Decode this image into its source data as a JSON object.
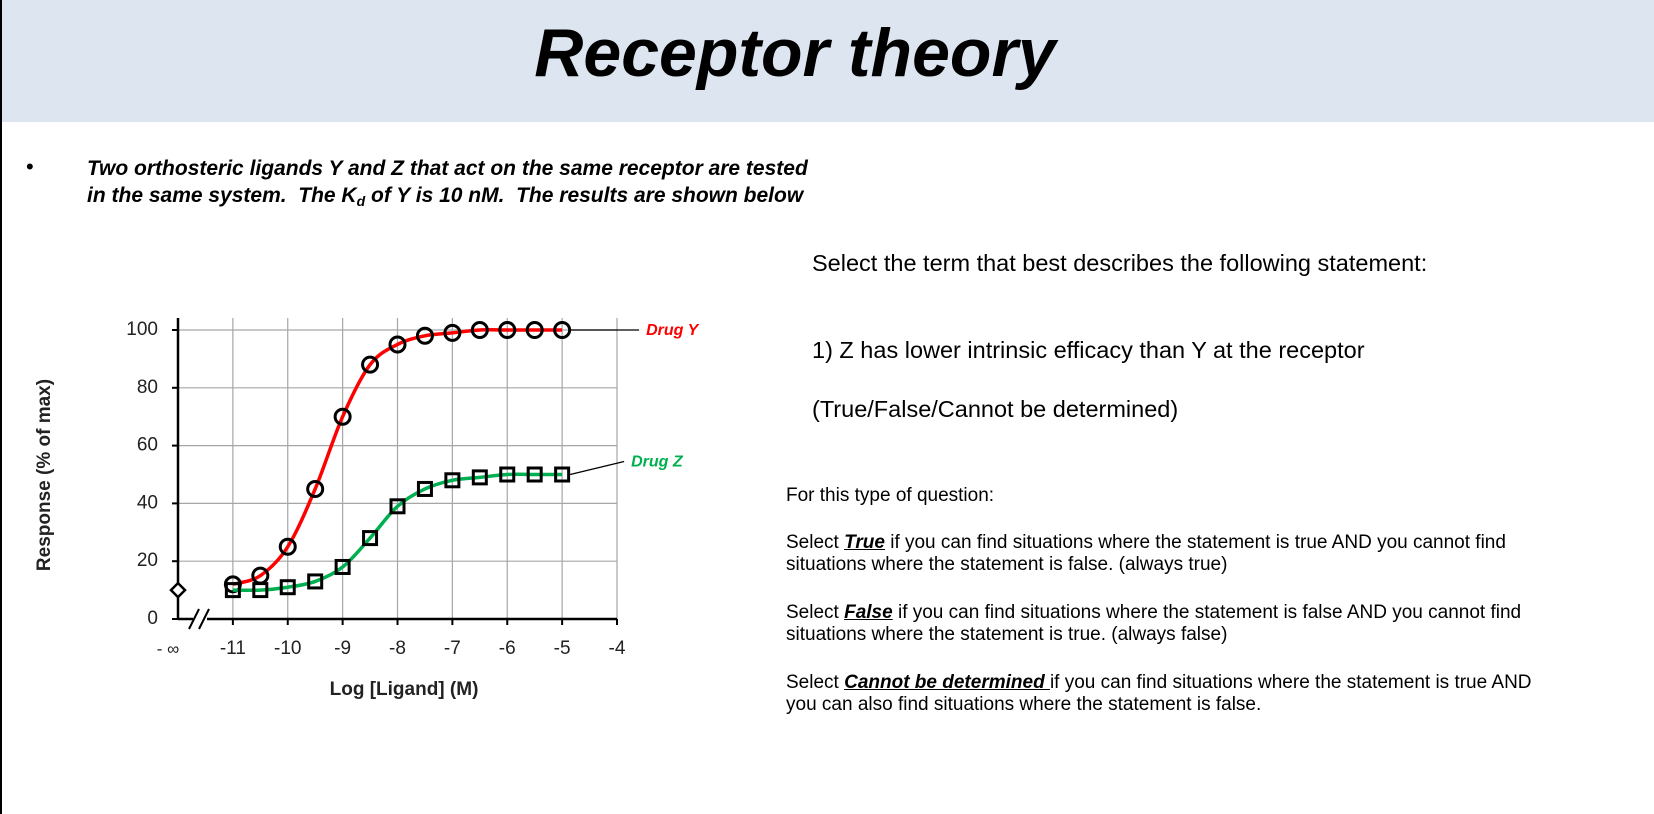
{
  "header": {
    "title": "Receptor theory"
  },
  "bullet": {
    "marker": "•",
    "line1": "Two orthosteric ligands Y and Z that act on the same receptor are tested",
    "line2_before": "in the same system.  The K",
    "subscript": "d",
    "line2_after": " of Y is 10 nM.  The results are shown below"
  },
  "question": {
    "prompt": "Select the term that best describes the following statement:",
    "statement": "1) Z has lower intrinsic efficacy than Y at the receptor",
    "options": "(True/False/Cannot be determined)"
  },
  "instructions": {
    "intro": "For this type of question:",
    "items": [
      {
        "before": "Select ",
        "term": "True",
        "after": " if you can find situations where the statement is true AND you cannot find situations where the statement is false. (always true)"
      },
      {
        "before": "Select ",
        "term": "False",
        "after": " if you can find situations where the statement is false AND you cannot find situations where the statement is true. (always false)"
      },
      {
        "before": "Select ",
        "term": "Cannot be determined ",
        "after": "if you can find situations where the statement is true AND you can also find situations where the statement is false."
      }
    ]
  },
  "chart_data": {
    "type": "line",
    "x_label": "Log [Ligand] (M)",
    "y_label": "Response (% of max)",
    "x": [
      -11,
      -10.5,
      -10,
      -9.5,
      -9,
      -8.5,
      -8,
      -7.5,
      -7,
      -6.5,
      -6,
      -5.5,
      -5
    ],
    "xlim": [
      -12,
      -4
    ],
    "xticks": [
      -11,
      -10,
      -9,
      -8,
      -7,
      -6,
      -5,
      -4
    ],
    "ylim": [
      0,
      100
    ],
    "yticks": [
      0,
      20,
      40,
      60,
      80,
      100
    ],
    "grid": true,
    "basal": {
      "label": "- ∞",
      "value": 10
    },
    "series": [
      {
        "name": "Drug Y",
        "color": "#ff0000",
        "marker": "circle",
        "values": [
          12,
          15,
          25,
          45,
          70,
          88,
          95,
          98,
          99,
          100,
          100,
          100,
          100
        ]
      },
      {
        "name": "Drug Z",
        "color": "#00b050",
        "marker": "square",
        "values": [
          10,
          10,
          11,
          13,
          18,
          28,
          39,
          45,
          48,
          49,
          50,
          50,
          50
        ]
      }
    ]
  }
}
